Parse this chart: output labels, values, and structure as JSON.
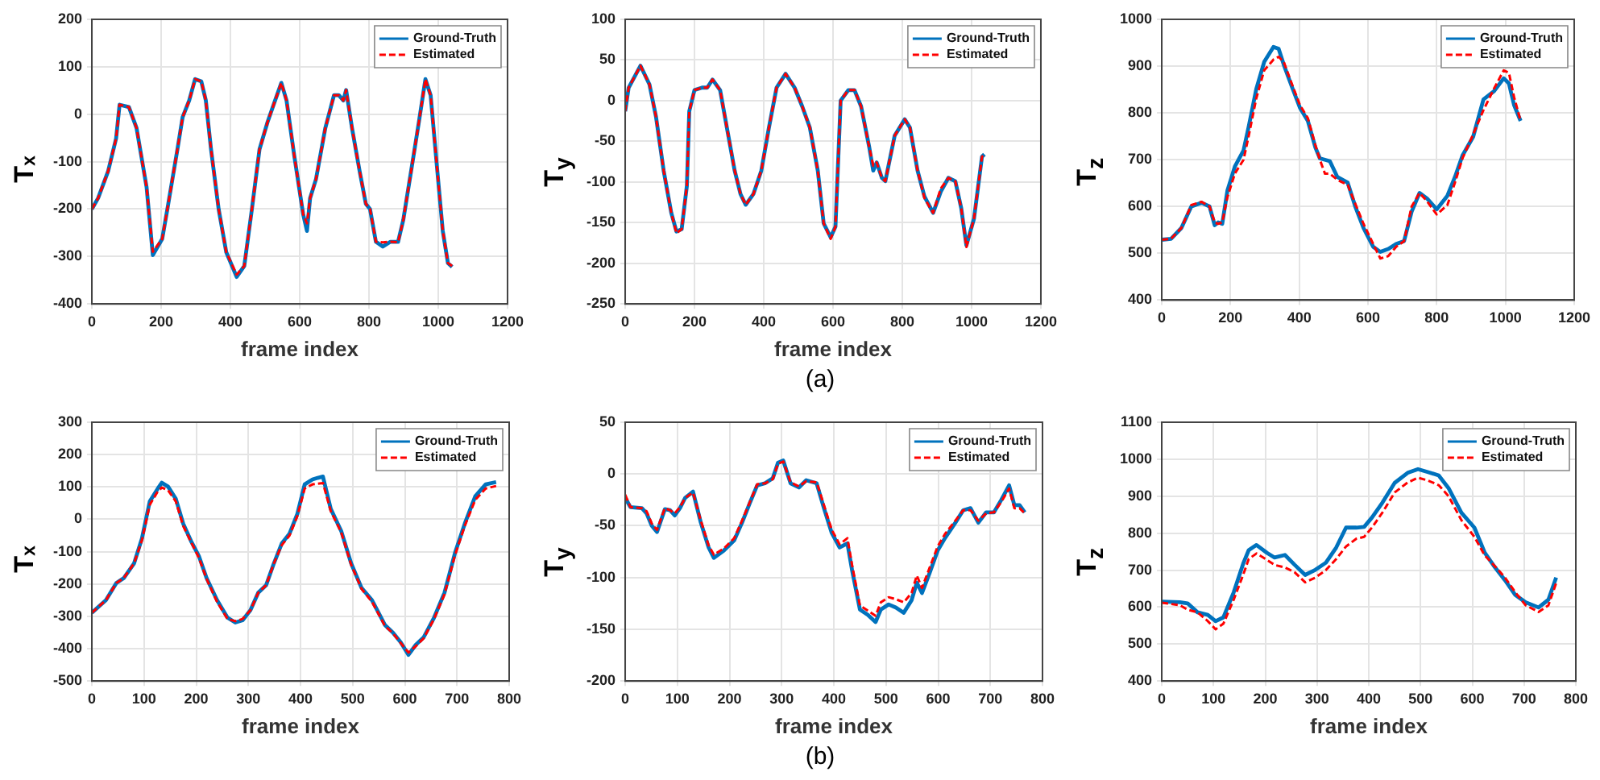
{
  "chart_data": [
    {
      "type": "line",
      "ylabel": "Tₓ",
      "xlabel": "frame index",
      "xlim": [
        0,
        1200
      ],
      "xticks": [
        0,
        200,
        400,
        600,
        800,
        1000,
        1200
      ],
      "ylim": [
        -400,
        200
      ],
      "yticks": [
        -400,
        -300,
        -200,
        -100,
        0,
        100,
        200
      ],
      "grid": true,
      "legend": "top right",
      "marker": "none",
      "x": [
        0,
        18,
        47,
        70,
        80,
        107,
        129,
        158,
        176,
        203,
        218,
        247,
        262,
        281,
        298,
        316,
        329,
        344,
        366,
        388,
        418,
        440,
        462,
        484,
        507,
        529,
        547,
        562,
        584,
        610,
        621,
        630,
        647,
        674,
        699,
        713,
        726,
        734,
        751,
        773,
        791,
        803,
        820,
        840,
        862,
        884,
        899,
        929,
        944,
        963,
        978,
        996,
        1013,
        1028,
        1040
      ],
      "series": [
        {
          "name": "Ground-Truth",
          "color": "#0072bd",
          "line_style": "solid",
          "values": [
            -200,
            -177,
            -120,
            -51,
            20,
            15,
            -29,
            -154,
            -297,
            -263,
            -200,
            -74,
            -6,
            29,
            74,
            69,
            29,
            -74,
            -200,
            -291,
            -343,
            -320,
            -200,
            -74,
            -17,
            29,
            66,
            29,
            -86,
            -211,
            -246,
            -177,
            -137,
            -29,
            40,
            40,
            29,
            51,
            -29,
            -120,
            -189,
            -200,
            -269,
            -279,
            -269,
            -269,
            -223,
            -86,
            -17,
            74,
            40,
            -109,
            -246,
            -314,
            -322
          ]
        },
        {
          "name": "Estimated",
          "color": "#ff0000",
          "line_style": "dashed",
          "values": [
            -200,
            -177,
            -120,
            -51,
            20,
            15,
            -29,
            -154,
            -290,
            -263,
            -200,
            -74,
            -6,
            29,
            74,
            69,
            29,
            -74,
            -200,
            -291,
            -338,
            -320,
            -200,
            -74,
            -17,
            29,
            66,
            29,
            -86,
            -211,
            -230,
            -177,
            -137,
            -29,
            40,
            40,
            29,
            51,
            -29,
            -120,
            -189,
            -200,
            -269,
            -270,
            -269,
            -270,
            -223,
            -86,
            -17,
            74,
            40,
            -109,
            -246,
            -314,
            -320
          ]
        }
      ]
    },
    {
      "type": "line",
      "ylabel": "T$_{y}$",
      "xlabel": "frame index",
      "annotations": [
        "(a)"
      ],
      "xlim": [
        0,
        1200
      ],
      "xticks": [
        0,
        200,
        400,
        600,
        800,
        1000,
        1200
      ],
      "ylim": [
        -250,
        100
      ],
      "yticks": [
        -250,
        -200,
        -150,
        -100,
        -50,
        0,
        50,
        100
      ],
      "grid": true,
      "legend": "top right",
      "marker": "none",
      "x": [
        0,
        10,
        44,
        70,
        89,
        111,
        133,
        148,
        163,
        178,
        185,
        200,
        222,
        237,
        252,
        274,
        296,
        316,
        333,
        348,
        370,
        393,
        415,
        437,
        463,
        489,
        511,
        533,
        556,
        573,
        593,
        607,
        622,
        644,
        662,
        681,
        704,
        716,
        726,
        741,
        751,
        778,
        807,
        822,
        844,
        864,
        889,
        911,
        933,
        953,
        970,
        985,
        1007,
        1030,
        1037
      ],
      "series": [
        {
          "name": "Ground-Truth",
          "color": "#0072bd",
          "line_style": "solid",
          "values": [
            -13,
            16,
            43,
            20,
            -20,
            -86,
            -138,
            -161,
            -158,
            -105,
            -13,
            13,
            16,
            16,
            26,
            13,
            -39,
            -86,
            -115,
            -128,
            -115,
            -86,
            -33,
            16,
            33,
            16,
            -7,
            -33,
            -86,
            -151,
            -168,
            -155,
            0,
            13,
            13,
            -7,
            -56,
            -86,
            -76,
            -95,
            -99,
            -43,
            -23,
            -33,
            -86,
            -118,
            -138,
            -112,
            -95,
            -99,
            -132,
            -178,
            -145,
            -69,
            -66
          ]
        },
        {
          "name": "Estimated",
          "color": "#ff0000",
          "line_style": "dashed",
          "values": [
            -13,
            16,
            43,
            20,
            -20,
            -86,
            -138,
            -163,
            -158,
            -105,
            -13,
            13,
            16,
            16,
            26,
            13,
            -39,
            -86,
            -115,
            -128,
            -115,
            -86,
            -33,
            16,
            33,
            16,
            -7,
            -33,
            -86,
            -151,
            -170,
            -155,
            0,
            13,
            13,
            -7,
            -56,
            -80,
            -76,
            -95,
            -99,
            -43,
            -23,
            -33,
            -86,
            -120,
            -138,
            -108,
            -95,
            -99,
            -132,
            -180,
            -145,
            -69,
            -66
          ]
        }
      ]
    },
    {
      "type": "line",
      "ylabel": "T$_{z}$",
      "xlim": [
        0,
        1200
      ],
      "xticks": [
        0,
        200,
        400,
        600,
        800,
        1000,
        1200
      ],
      "ylim": [
        400,
        1000
      ],
      "yticks": [
        400,
        500,
        600,
        700,
        800,
        900,
        1000
      ],
      "grid": true,
      "legend": "top right",
      "marker": "none",
      "series": [
        {
          "name": "Ground-Truth",
          "color": "#0072bd",
          "line_style": "solid",
          "x": [
            0,
            27,
            57,
            86,
            116,
            139,
            154,
            164,
            176,
            191,
            213,
            238,
            253,
            275,
            298,
            325,
            340,
            355,
            378,
            402,
            425,
            447,
            460,
            489,
            511,
            541,
            563,
            587,
            615,
            636,
            659,
            682,
            705,
            727,
            750,
            772,
            800,
            831,
            853,
            875,
            906,
            936,
            966,
            995,
            1010,
            1025,
            1044
          ],
          "values": [
            529,
            531,
            554,
            600,
            608,
            600,
            560,
            566,
            563,
            634,
            686,
            720,
            771,
            851,
            909,
            941,
            937,
            903,
            857,
            811,
            783,
            726,
            703,
            697,
            663,
            651,
            600,
            554,
            514,
            503,
            509,
            520,
            526,
            589,
            629,
            617,
            594,
            623,
            663,
            709,
            749,
            829,
            846,
            874,
            863,
            817,
            783
          ]
        },
        {
          "name": "Estimated",
          "color": "#ff0000",
          "line_style": "dashed",
          "x": [
            0,
            27,
            57,
            86,
            116,
            139,
            154,
            164,
            176,
            191,
            213,
            238,
            253,
            275,
            298,
            325,
            340,
            355,
            378,
            402,
            425,
            447,
            460,
            475,
            489,
            511,
            541,
            563,
            587,
            615,
            636,
            659,
            682,
            705,
            727,
            750,
            772,
            800,
            831,
            853,
            875,
            906,
            936,
            966,
            995,
            1010,
            1025,
            1044
          ],
          "values": [
            529,
            531,
            554,
            603,
            610,
            600,
            566,
            563,
            566,
            620,
            671,
            700,
            751,
            831,
            891,
            914,
            920,
            909,
            863,
            817,
            789,
            731,
            700,
            670,
            670,
            657,
            646,
            606,
            563,
            520,
            489,
            494,
            514,
            526,
            600,
            629,
            611,
            583,
            603,
            651,
            703,
            754,
            806,
            851,
            891,
            886,
            834,
            783
          ]
        }
      ]
    },
    {
      "type": "line",
      "ylabel": "Tₓ",
      "xlabel": "frame index",
      "xlim": [
        0,
        800
      ],
      "xticks": [
        0,
        100,
        200,
        300,
        400,
        500,
        600,
        700,
        800
      ],
      "ylim": [
        -500,
        300
      ],
      "yticks": [
        -500,
        -400,
        -300,
        -200,
        -100,
        0,
        100,
        200,
        300
      ],
      "grid": true,
      "legend": "top right",
      "marker": "none",
      "x": [
        0,
        27,
        47,
        61,
        81,
        96,
        111,
        126,
        134,
        146,
        161,
        175,
        190,
        205,
        220,
        240,
        260,
        275,
        289,
        304,
        319,
        334,
        349,
        364,
        379,
        394,
        408,
        423,
        433,
        443,
        458,
        478,
        497,
        517,
        537,
        562,
        577,
        592,
        607,
        621,
        636,
        656,
        676,
        696,
        715,
        735,
        755,
        775
      ],
      "series": [
        {
          "name": "Ground-Truth",
          "color": "#0072bd",
          "line_style": "solid",
          "values": [
            -289,
            -250,
            -197,
            -182,
            -136,
            -59,
            55,
            94,
            113,
            101,
            63,
            -13,
            -67,
            -113,
            -182,
            -250,
            -304,
            -319,
            -312,
            -281,
            -227,
            -204,
            -136,
            -75,
            -44,
            17,
            108,
            123,
            128,
            132,
            32,
            -36,
            -136,
            -212,
            -250,
            -327,
            -350,
            -380,
            -419,
            -388,
            -365,
            -304,
            -227,
            -105,
            -13,
            71,
            108,
            115
          ]
        },
        {
          "name": "Estimated",
          "color": "#ff0000",
          "line_style": "dashed",
          "values": [
            -289,
            -250,
            -197,
            -182,
            -136,
            -65,
            45,
            85,
            98,
            90,
            55,
            -20,
            -70,
            -118,
            -185,
            -255,
            -308,
            -315,
            -308,
            -281,
            -227,
            -204,
            -136,
            -80,
            -50,
            10,
            95,
            108,
            110,
            112,
            25,
            -40,
            -140,
            -215,
            -255,
            -330,
            -352,
            -382,
            -412,
            -392,
            -368,
            -308,
            -232,
            -112,
            -20,
            60,
            95,
            103
          ]
        }
      ]
    },
    {
      "type": "line",
      "ylabel": "T$_{y}$",
      "xlabel": "frame index",
      "annotations": [
        "(b)"
      ],
      "xlim": [
        0,
        800
      ],
      "xticks": [
        0,
        100,
        200,
        300,
        400,
        500,
        600,
        700,
        800
      ],
      "ylim": [
        -200,
        50
      ],
      "yticks": [
        -200,
        -150,
        -100,
        -50,
        0,
        50
      ],
      "grid": true,
      "legend": "top right",
      "marker": "none",
      "x": [
        0,
        10,
        32,
        41,
        51,
        61,
        76,
        86,
        95,
        105,
        115,
        130,
        145,
        160,
        170,
        189,
        209,
        224,
        239,
        253,
        268,
        283,
        293,
        303,
        317,
        333,
        347,
        367,
        381,
        396,
        411,
        426,
        435,
        450,
        465,
        480,
        490,
        505,
        519,
        534,
        549,
        559,
        569,
        584,
        599,
        613,
        633,
        648,
        662,
        677,
        692,
        707,
        721,
        736,
        746,
        756,
        766
      ],
      "series": [
        {
          "name": "Ground-Truth",
          "color": "#0072bd",
          "line_style": "solid",
          "values": [
            -23,
            -32,
            -33,
            -38,
            -50,
            -56,
            -34,
            -35,
            -40,
            -33,
            -23,
            -17,
            -47,
            -71,
            -81,
            -74,
            -64,
            -47,
            -28,
            -11,
            -9,
            -4,
            11,
            13,
            -9,
            -13,
            -6,
            -9,
            -33,
            -57,
            -71,
            -67,
            -93,
            -131,
            -136,
            -143,
            -131,
            -126,
            -129,
            -134,
            -122,
            -105,
            -115,
            -95,
            -74,
            -62,
            -47,
            -35,
            -33,
            -47,
            -37,
            -37,
            -25,
            -11,
            -30,
            -30,
            -37
          ]
        },
        {
          "name": "Estimated",
          "color": "#ff0000",
          "line_style": "dashed",
          "values": [
            -20,
            -32,
            -33,
            -36,
            -48,
            -54,
            -33,
            -35,
            -38,
            -32,
            -23,
            -18,
            -45,
            -69,
            -78,
            -72,
            -62,
            -45,
            -27,
            -10,
            -9,
            -5,
            10,
            12,
            -8,
            -12,
            -7,
            -8,
            -30,
            -54,
            -68,
            -62,
            -88,
            -127,
            -132,
            -137,
            -124,
            -119,
            -121,
            -124,
            -115,
            -98,
            -110,
            -90,
            -70,
            -58,
            -45,
            -35,
            -35,
            -45,
            -38,
            -37,
            -27,
            -14,
            -33,
            -33,
            -38
          ]
        }
      ]
    },
    {
      "type": "line",
      "ylabel": "T$_{z}$",
      "xlabel": "frame index",
      "xlim": [
        0,
        800
      ],
      "xticks": [
        0,
        100,
        200,
        300,
        400,
        500,
        600,
        700,
        800
      ],
      "ylim": [
        400,
        1100
      ],
      "yticks": [
        400,
        500,
        600,
        700,
        800,
        900,
        1000,
        1100
      ],
      "grid": true,
      "legend": "top right",
      "marker": "none",
      "x": [
        0,
        35,
        50,
        69,
        89,
        104,
        119,
        139,
        158,
        168,
        183,
        203,
        218,
        238,
        257,
        277,
        297,
        317,
        337,
        356,
        376,
        391,
        406,
        426,
        450,
        475,
        495,
        515,
        535,
        554,
        579,
        604,
        624,
        644,
        663,
        683,
        703,
        728,
        747,
        762
      ],
      "series": [
        {
          "name": "Ground-Truth",
          "color": "#0072bd",
          "line_style": "solid",
          "values": [
            615,
            613,
            610,
            586,
            579,
            562,
            572,
            640,
            720,
            754,
            768,
            747,
            734,
            741,
            714,
            687,
            701,
            720,
            761,
            815,
            815,
            817,
            842,
            882,
            936,
            963,
            973,
            965,
            956,
            922,
            855,
            815,
            747,
            707,
            673,
            633,
            613,
            599,
            620,
            680
          ]
        },
        {
          "name": "Estimated",
          "color": "#ff0000",
          "line_style": "dashed",
          "values": [
            612,
            605,
            593,
            586,
            562,
            540,
            555,
            620,
            690,
            730,
            745,
            728,
            714,
            707,
            694,
            667,
            680,
            700,
            730,
            764,
            785,
            790,
            815,
            855,
            910,
            937,
            950,
            942,
            930,
            900,
            835,
            790,
            740,
            710,
            680,
            640,
            605,
            587,
            605,
            665
          ]
        }
      ]
    }
  ]
}
